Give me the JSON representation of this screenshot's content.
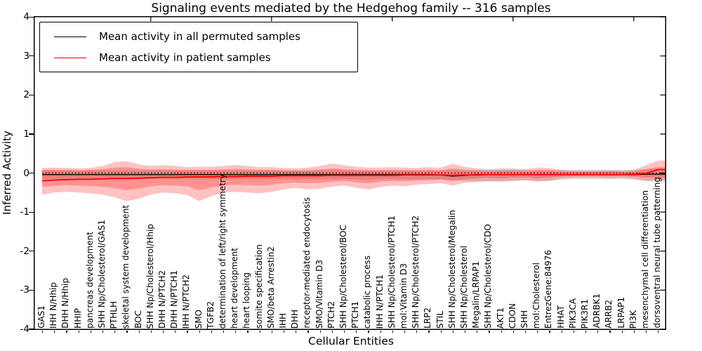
{
  "chart_data": {
    "type": "line",
    "title": "Signaling events mediated by the Hedgehog family -- 316 samples",
    "xlabel": "Cellular Entities",
    "ylabel": "Inferred Activity",
    "ylim": [
      -4,
      4
    ],
    "yticks": [
      "4",
      "3",
      "2",
      "1",
      "0",
      "-1",
      "-2",
      "-3",
      "-4"
    ],
    "ytick_values": [
      4,
      3,
      2,
      1,
      0,
      -1,
      -2,
      -3,
      -4
    ],
    "grid": false,
    "legend_position": "upper left",
    "zero_line": 0,
    "categories": [
      "GAS1",
      "IHH N/Hhip",
      "DHH N/Hhip",
      "HHIP",
      "pancreas development",
      "SHH Np/Cholesterol/GAS1",
      "PTHLH",
      "skeletal system development",
      "BOC",
      "SHH Np/Cholesterol/Hhip",
      "DHH N/PTCH2",
      "DHH N/PTCH1",
      "IHH N/PTCH2",
      "SMO",
      "TGFB2",
      "determination of left/right symmetry",
      "heart development",
      "heart looping",
      "somite specification",
      "SMO/beta Arrestin2",
      "IHH",
      "DHH",
      "receptor-mediated endocytosis",
      "SMO/Vitamin D3",
      "PTCH2",
      "SHH Np/Cholesterol/BOC",
      "PTCH1",
      "catabolic process",
      "IHH N/PTCH1",
      "SHH Np/Cholesterol/PTCH1",
      "mol:Vitamin D3",
      "SHH Np/Cholesterol/PTCH2",
      "LRP2",
      "STIL",
      "SHH Np/Cholesterol/Megalin",
      "SHH Np/Cholesterol",
      "Megalin/LRPAP1",
      "SHH Np/Cholesterol/CDO",
      "AKT1",
      "CDON",
      "SHH",
      "mol:Cholesterol",
      "EntrezGene:84976",
      "HHAT",
      "PIK3CA",
      "PIK3R1",
      "ADRBK1",
      "ARRB2",
      "LRPAP1",
      "PI3K",
      "mesenchymal cell differentiation",
      "dorsoventral neural tube patterning"
    ],
    "series": [
      {
        "name": "Mean activity in all permuted samples",
        "color": "#000000",
        "values": [
          -0.04,
          -0.04,
          -0.04,
          -0.04,
          -0.04,
          -0.04,
          -0.04,
          -0.04,
          -0.04,
          -0.04,
          -0.04,
          -0.04,
          -0.04,
          -0.04,
          -0.04,
          -0.04,
          -0.04,
          -0.04,
          -0.04,
          -0.04,
          -0.04,
          -0.04,
          -0.04,
          -0.04,
          -0.04,
          -0.04,
          -0.04,
          -0.04,
          -0.04,
          -0.04,
          -0.04,
          -0.04,
          -0.04,
          -0.05,
          -0.08,
          -0.06,
          -0.04,
          -0.04,
          -0.04,
          -0.04,
          -0.04,
          -0.04,
          -0.04,
          -0.04,
          -0.04,
          -0.04,
          -0.04,
          -0.04,
          -0.04,
          -0.04,
          -0.03,
          -0.03
        ]
      },
      {
        "name": "Mean activity in patient samples",
        "color": "#ff0000",
        "values": [
          -0.2,
          -0.18,
          -0.17,
          -0.16,
          -0.16,
          -0.15,
          -0.14,
          -0.14,
          -0.13,
          -0.12,
          -0.11,
          -0.11,
          -0.1,
          -0.1,
          -0.1,
          -0.09,
          -0.09,
          -0.08,
          -0.08,
          -0.08,
          -0.07,
          -0.07,
          -0.07,
          -0.07,
          -0.06,
          -0.06,
          -0.06,
          -0.06,
          -0.06,
          -0.06,
          -0.05,
          -0.05,
          -0.05,
          -0.05,
          -0.06,
          -0.05,
          -0.05,
          -0.04,
          -0.04,
          -0.04,
          -0.04,
          -0.04,
          -0.04,
          -0.04,
          -0.04,
          -0.04,
          -0.04,
          -0.04,
          -0.04,
          -0.03,
          -0.01,
          0.09
        ]
      }
    ],
    "bands": [
      {
        "name": "permuted samples spread",
        "color": "rgba(0,0,0,0.13)",
        "upper": [
          0.07,
          0.07,
          0.07,
          0.07,
          0.07,
          0.07,
          0.07,
          0.07,
          0.07,
          0.07,
          0.07,
          0.07,
          0.07,
          0.07,
          0.07,
          0.07,
          0.07,
          0.07,
          0.07,
          0.07,
          0.07,
          0.07,
          0.07,
          0.07,
          0.08,
          0.07,
          0.07,
          0.07,
          0.07,
          0.07,
          0.07,
          0.07,
          0.07,
          0.07,
          0.07,
          0.07,
          0.08,
          0.08,
          0.08,
          0.08,
          0.08,
          0.08,
          0.08,
          0.08,
          0.08,
          0.08,
          0.08,
          0.08,
          0.08,
          0.08,
          0.1,
          0.12
        ],
        "lower": [
          -0.15,
          -0.15,
          -0.15,
          -0.15,
          -0.15,
          -0.16,
          -0.16,
          -0.16,
          -0.16,
          -0.15,
          -0.15,
          -0.15,
          -0.15,
          -0.16,
          -0.16,
          -0.15,
          -0.15,
          -0.15,
          -0.15,
          -0.15,
          -0.15,
          -0.16,
          -0.16,
          -0.16,
          -0.16,
          -0.15,
          -0.16,
          -0.17,
          -0.16,
          -0.16,
          -0.16,
          -0.16,
          -0.16,
          -0.17,
          -0.19,
          -0.2,
          -0.22,
          -0.22,
          -0.21,
          -0.2,
          -0.19,
          -0.2,
          -0.2,
          -0.17,
          -0.16,
          -0.16,
          -0.16,
          -0.16,
          -0.16,
          -0.17,
          -0.21,
          -0.23
        ]
      },
      {
        "name": "patient samples outer spread",
        "color": "rgba(255,0,0,0.24)",
        "upper": [
          0.13,
          0.14,
          0.13,
          0.12,
          0.13,
          0.18,
          0.28,
          0.3,
          0.22,
          0.18,
          0.2,
          0.18,
          0.15,
          0.16,
          0.16,
          0.18,
          0.21,
          0.18,
          0.15,
          0.15,
          0.13,
          0.12,
          0.14,
          0.18,
          0.24,
          0.2,
          0.16,
          0.14,
          0.14,
          0.15,
          0.14,
          0.13,
          0.15,
          0.14,
          0.24,
          0.16,
          0.12,
          0.1,
          0.12,
          0.12,
          0.1,
          0.14,
          0.13,
          0.08,
          0.06,
          0.06,
          0.06,
          0.07,
          0.06,
          0.08,
          0.2,
          0.32
        ],
        "lower": [
          -0.55,
          -0.5,
          -0.48,
          -0.5,
          -0.52,
          -0.55,
          -0.62,
          -0.72,
          -0.66,
          -0.55,
          -0.5,
          -0.52,
          -0.56,
          -0.72,
          -0.6,
          -0.5,
          -0.48,
          -0.5,
          -0.52,
          -0.48,
          -0.42,
          -0.38,
          -0.42,
          -0.4,
          -0.35,
          -0.32,
          -0.38,
          -0.42,
          -0.36,
          -0.32,
          -0.34,
          -0.3,
          -0.28,
          -0.26,
          -0.32,
          -0.25,
          -0.22,
          -0.2,
          -0.22,
          -0.2,
          -0.18,
          -0.22,
          -0.2,
          -0.14,
          -0.12,
          -0.12,
          -0.12,
          -0.13,
          -0.12,
          -0.14,
          -0.2,
          -0.18
        ]
      },
      {
        "name": "patient samples inner spread",
        "color": "rgba(255,0,0,0.25)",
        "upper": [
          0.08,
          0.08,
          0.08,
          0.07,
          0.08,
          0.1,
          0.14,
          0.15,
          0.11,
          0.09,
          0.1,
          0.09,
          0.08,
          0.08,
          0.08,
          0.09,
          0.11,
          0.09,
          0.08,
          0.08,
          0.07,
          0.06,
          0.07,
          0.09,
          0.12,
          0.1,
          0.08,
          0.07,
          0.07,
          0.08,
          0.07,
          0.07,
          0.08,
          0.07,
          0.12,
          0.08,
          0.06,
          0.05,
          0.06,
          0.06,
          0.05,
          0.07,
          0.07,
          0.04,
          0.03,
          0.03,
          0.03,
          0.04,
          0.03,
          0.04,
          0.1,
          0.16
        ],
        "lower": [
          -0.35,
          -0.33,
          -0.31,
          -0.32,
          -0.33,
          -0.35,
          -0.38,
          -0.44,
          -0.4,
          -0.34,
          -0.31,
          -0.32,
          -0.34,
          -0.44,
          -0.37,
          -0.31,
          -0.3,
          -0.31,
          -0.32,
          -0.3,
          -0.26,
          -0.24,
          -0.26,
          -0.25,
          -0.22,
          -0.2,
          -0.24,
          -0.26,
          -0.22,
          -0.2,
          -0.21,
          -0.19,
          -0.18,
          -0.16,
          -0.2,
          -0.16,
          -0.14,
          -0.12,
          -0.14,
          -0.12,
          -0.11,
          -0.14,
          -0.12,
          -0.09,
          -0.07,
          -0.07,
          -0.07,
          -0.08,
          -0.07,
          -0.09,
          -0.12,
          -0.11
        ]
      }
    ]
  }
}
